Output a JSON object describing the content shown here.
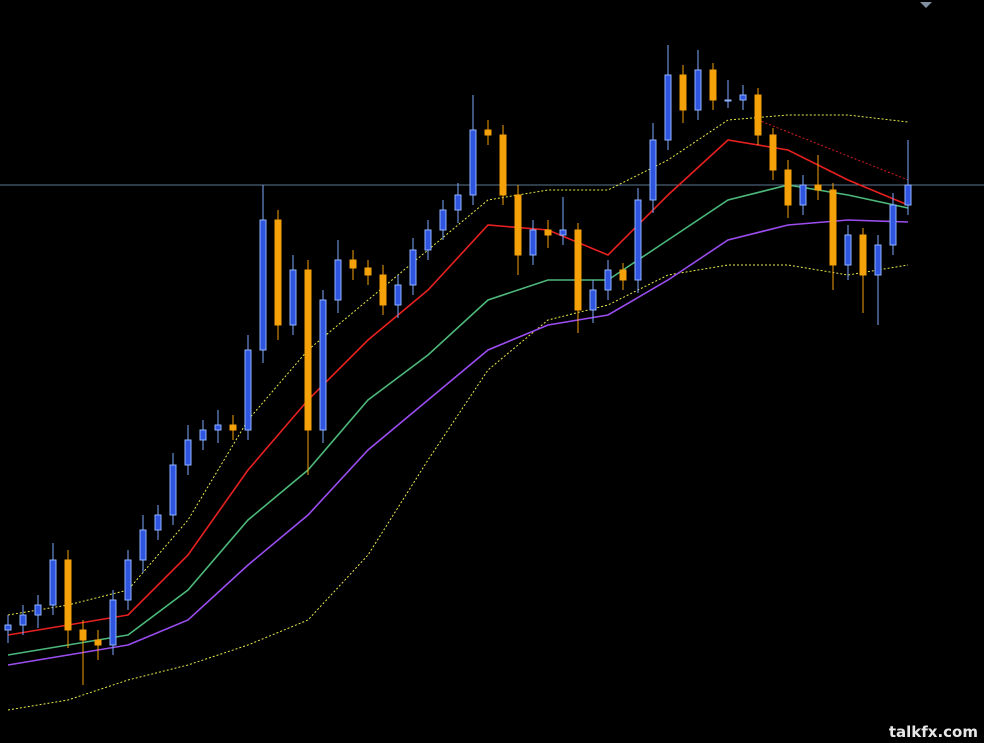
{
  "chart_data": {
    "type": "candlestick",
    "ylim": [
      0,
      74.3
    ],
    "up_color": "#2f54e0",
    "down_color": "#f5a10a",
    "background": "#000000",
    "hline": 55.8,
    "hline_color": "#5a7890",
    "open": [
      11.3,
      11.8,
      12.8,
      13.8,
      18.3,
      11.3,
      10.3,
      9.8,
      14.3,
      18.3,
      21.3,
      22.8,
      27.8,
      30.3,
      31.3,
      31.8,
      31.3,
      39.3,
      52.3,
      41.8,
      47.3,
      31.3,
      44.3,
      48.3,
      47.5,
      46.8,
      43.8,
      45.8,
      49.3,
      51.3,
      53.3,
      54.8,
      61.3,
      60.8,
      54.8,
      48.8,
      51.3,
      50.8,
      51.3,
      43.3,
      45.3,
      47.3,
      46.3,
      54.3,
      60.3,
      66.8,
      63.3,
      67.3,
      64.3,
      64.3,
      64.8,
      60.8,
      57.3,
      53.8,
      55.8,
      55.3,
      47.8,
      50.8,
      46.8,
      49.8,
      53.8
    ],
    "high": [
      12.8,
      13.8,
      14.8,
      20.0,
      19.3,
      12.3,
      11.3,
      15.3,
      19.3,
      22.8,
      23.8,
      29.0,
      31.8,
      32.3,
      33.3,
      32.8,
      40.8,
      55.8,
      53.3,
      48.8,
      48.3,
      45.3,
      50.3,
      49.3,
      48.3,
      47.8,
      46.8,
      50.5,
      52.3,
      54.3,
      56.0,
      64.8,
      62.3,
      61.8,
      55.8,
      52.3,
      52.3,
      54.6,
      52.0,
      46.3,
      48.3,
      48.0,
      55.5,
      62.0,
      69.8,
      67.8,
      69.3,
      68.0,
      66.3,
      65.8,
      65.5,
      61.5,
      58.3,
      56.8,
      58.8,
      56.0,
      51.8,
      51.5,
      50.8,
      55.0,
      60.3
    ],
    "low": [
      10.0,
      10.8,
      11.5,
      12.8,
      9.5,
      5.8,
      8.3,
      8.8,
      13.3,
      17.0,
      20.3,
      21.8,
      26.8,
      29.3,
      30.0,
      30.3,
      30.3,
      38.0,
      40.3,
      40.8,
      26.8,
      30.0,
      43.0,
      46.3,
      45.8,
      42.8,
      42.5,
      44.8,
      48.3,
      50.3,
      52.0,
      53.8,
      59.8,
      53.8,
      46.8,
      47.8,
      49.5,
      49.8,
      41.0,
      42.0,
      44.3,
      45.3,
      45.0,
      53.0,
      59.3,
      62.0,
      62.3,
      63.3,
      63.5,
      63.3,
      59.8,
      56.3,
      52.5,
      52.8,
      54.3,
      45.3,
      46.3,
      43.0,
      41.8,
      48.8,
      52.8
    ],
    "close": [
      11.8,
      12.8,
      13.8,
      18.3,
      11.3,
      10.3,
      9.8,
      14.3,
      18.3,
      21.3,
      22.8,
      27.8,
      30.3,
      31.3,
      31.8,
      31.3,
      39.3,
      52.3,
      41.8,
      47.3,
      31.3,
      44.3,
      48.3,
      47.5,
      46.8,
      43.8,
      45.8,
      49.3,
      51.3,
      53.3,
      54.8,
      61.3,
      60.8,
      54.8,
      48.8,
      51.3,
      50.8,
      51.3,
      43.3,
      45.3,
      47.3,
      46.3,
      54.3,
      60.3,
      66.8,
      63.3,
      67.3,
      64.3,
      64.3,
      64.8,
      60.8,
      57.3,
      53.8,
      55.8,
      55.3,
      47.8,
      50.8,
      46.8,
      49.8,
      53.8,
      55.8
    ],
    "lines": [
      {
        "color": "#e8e84a",
        "dashed": true,
        "x": [
          0,
          4,
          8,
          12,
          16,
          20,
          24,
          28,
          32,
          36,
          40,
          44,
          48,
          52,
          56,
          60
        ],
        "values": [
          12.8,
          13.8,
          15.3,
          22.3,
          32.3,
          39.3,
          44.3,
          49.3,
          54.3,
          55.3,
          55.3,
          58.3,
          62.3,
          62.8,
          62.8,
          62.1
        ]
      },
      {
        "color": "#e8e84a",
        "dashed": true,
        "x": [
          0,
          4,
          8,
          12,
          16,
          20,
          24,
          28,
          32,
          36,
          40,
          44,
          48,
          52,
          56,
          60
        ],
        "values": [
          3.3,
          4.3,
          6.3,
          7.8,
          9.8,
          12.3,
          18.8,
          28.3,
          37.3,
          42.3,
          43.8,
          46.8,
          47.8,
          47.8,
          46.8,
          47.8
        ]
      },
      {
        "color": "#9b4df0",
        "dashed": false,
        "x": [
          0,
          4,
          8,
          12,
          16,
          20,
          24,
          28,
          32,
          36,
          40,
          44,
          48,
          52,
          56,
          60
        ],
        "values": [
          7.8,
          8.8,
          9.8,
          12.3,
          17.8,
          22.8,
          29.3,
          34.3,
          39.3,
          41.8,
          42.8,
          46.3,
          50.3,
          51.8,
          52.3,
          52.1
        ]
      },
      {
        "color": "#4cb87a",
        "dashed": false,
        "x": [
          0,
          4,
          8,
          12,
          16,
          20,
          24,
          28,
          32,
          36,
          40,
          44,
          48,
          52,
          56,
          60
        ],
        "values": [
          8.8,
          9.8,
          10.8,
          15.3,
          22.3,
          27.3,
          34.3,
          38.8,
          44.3,
          46.3,
          46.3,
          50.3,
          54.3,
          55.8,
          54.8,
          53.5
        ]
      },
      {
        "color": "#e82020",
        "dashed": false,
        "x": [
          0,
          4,
          8,
          12,
          16,
          20,
          24,
          28,
          32,
          36,
          40,
          44,
          48,
          52,
          56,
          60
        ],
        "values": [
          10.8,
          11.8,
          12.8,
          18.8,
          27.3,
          34.3,
          40.3,
          45.3,
          51.8,
          51.3,
          48.8,
          54.8,
          60.3,
          59.3,
          56.3,
          53.8
        ]
      },
      {
        "color": "#d02020",
        "dashed": true,
        "x": [
          50,
          60
        ],
        "values": [
          62.3,
          56.3
        ]
      }
    ]
  },
  "watermark": "talkfx.com"
}
